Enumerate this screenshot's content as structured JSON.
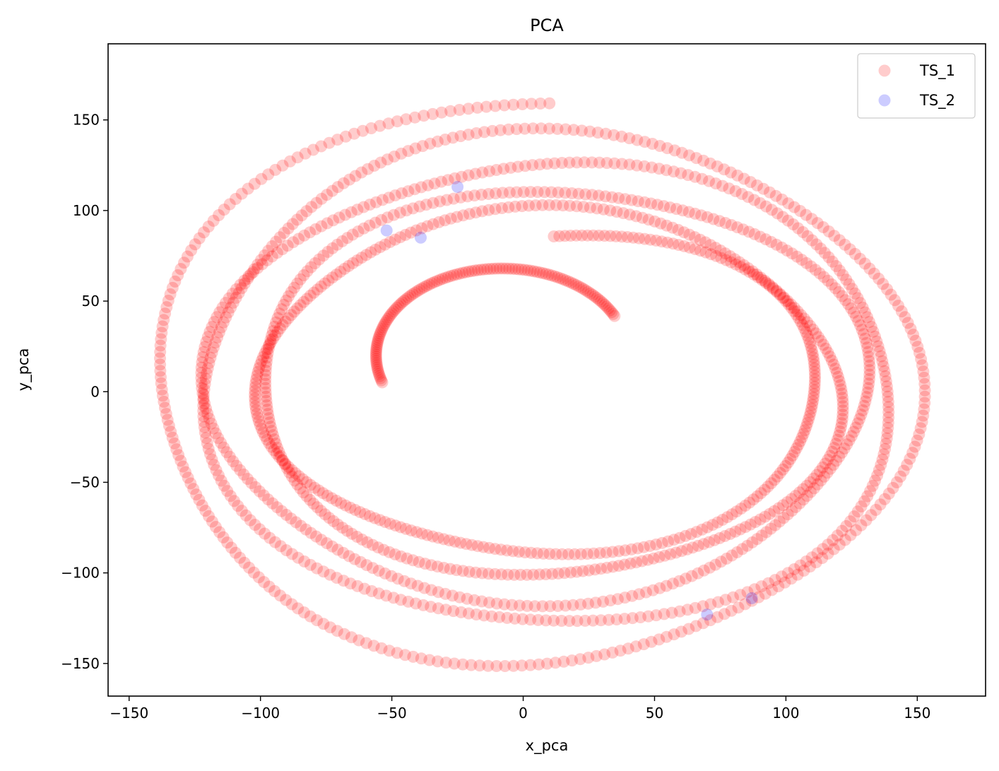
{
  "chart_data": {
    "type": "scatter",
    "title": "PCA",
    "xlabel": "x_pca",
    "ylabel": "y_pca",
    "xlim": [
      -158,
      176
    ],
    "ylim": [
      -168,
      192
    ],
    "xticks": [
      -150,
      -100,
      -50,
      0,
      50,
      100,
      150
    ],
    "yticks": [
      -150,
      -100,
      -50,
      0,
      50,
      100,
      150
    ],
    "xtick_labels": [
      "−150",
      "−100",
      "−50",
      "0",
      "50",
      "100",
      "150"
    ],
    "ytick_labels": [
      "−150",
      "−100",
      "−50",
      "0",
      "50",
      "100",
      "150"
    ],
    "grid": false,
    "legend_position": "top-right",
    "series": [
      {
        "name": "TS_1",
        "color": "#ff0000",
        "alpha": 0.2,
        "trajectory": {
          "description_free": true,
          "x_center": 10,
          "y_center": 10,
          "rings": [
            {
              "rx": 150,
              "ry": 162
            },
            {
              "rx": 138,
              "ry": 140
            },
            {
              "rx": 128,
              "ry": 124
            },
            {
              "rx": 118,
              "ry": 110
            },
            {
              "rx": 108,
              "ry": 98
            },
            {
              "rx": 100,
              "ry": 86
            }
          ],
          "start": [
            -44,
            40
          ],
          "end": [
            38,
            40
          ]
        }
      },
      {
        "name": "TS_2",
        "color": "#0000ff",
        "alpha": 0.2,
        "x": [
          -25,
          -52,
          -39,
          70,
          87
        ],
        "y": [
          113,
          89,
          85,
          -123,
          -114
        ]
      }
    ]
  }
}
